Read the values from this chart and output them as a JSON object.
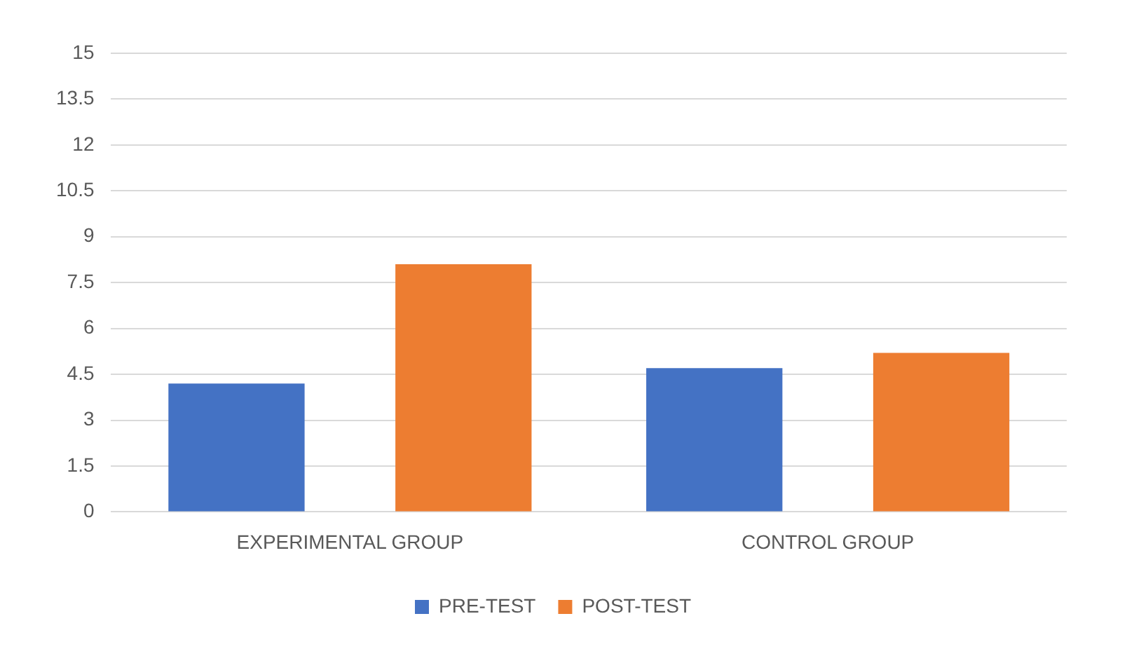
{
  "chart_data": {
    "type": "bar",
    "categories": [
      "EXPERIMENTAL GROUP",
      "CONTROL GROUP"
    ],
    "series": [
      {
        "name": "PRE-TEST",
        "color": "#4472c4",
        "values": [
          4.2,
          4.7
        ]
      },
      {
        "name": "POST-TEST",
        "color": "#ed7d31",
        "values": [
          8.1,
          5.2
        ]
      }
    ],
    "ylim": [
      0,
      15
    ],
    "yticks": [
      0,
      1.5,
      3,
      4.5,
      6,
      7.5,
      9,
      10.5,
      12,
      13.5,
      15
    ],
    "grid": "y",
    "legend": "bottom"
  }
}
